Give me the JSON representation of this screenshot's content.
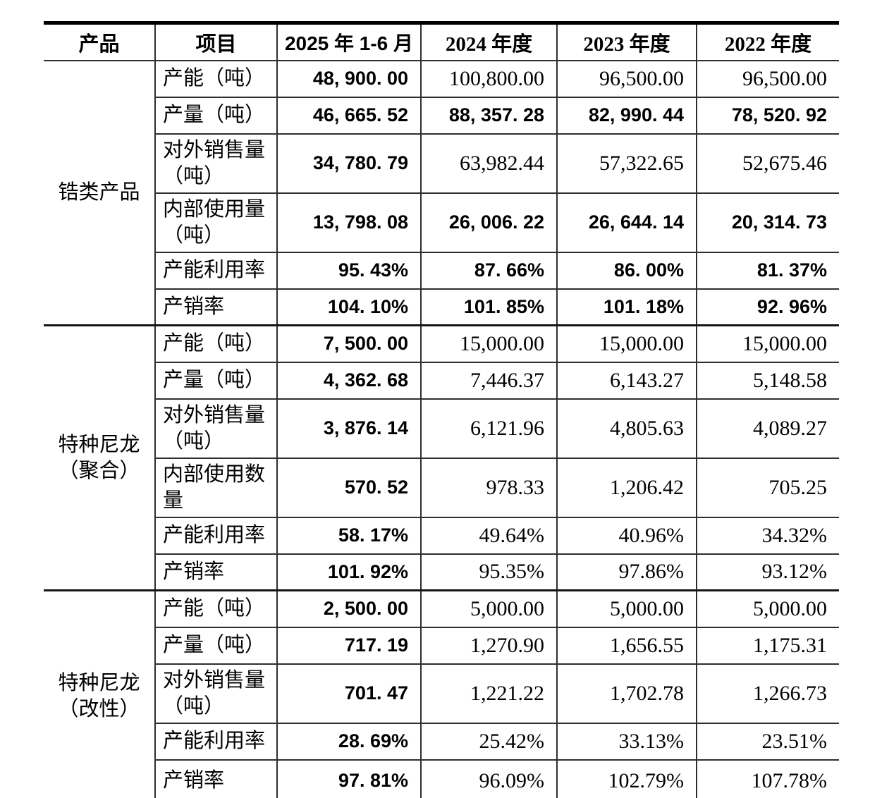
{
  "table": {
    "columns": [
      "产品",
      "项目",
      "2025 年 1-6 月",
      "2024 年度",
      "2023 年度",
      "2022 年度"
    ],
    "groups": [
      {
        "product": "锆类产品",
        "rows": [
          {
            "item": "产能（吨）",
            "values": [
              "48, 900. 00",
              "100,800.00",
              "96,500.00",
              "96,500.00"
            ],
            "bold": [
              true,
              false,
              false,
              false
            ]
          },
          {
            "item": "产量（吨）",
            "values": [
              "46, 665. 52",
              "88, 357. 28",
              "82, 990. 44",
              "78, 520. 92"
            ],
            "bold": [
              true,
              true,
              true,
              true
            ]
          },
          {
            "item": "对外销售量（吨）",
            "values": [
              "34, 780. 79",
              "63,982.44",
              "57,322.65",
              "52,675.46"
            ],
            "bold": [
              true,
              false,
              false,
              false
            ]
          },
          {
            "item": "内部使用量（吨）",
            "values": [
              "13, 798. 08",
              "26, 006. 22",
              "26, 644. 14",
              "20, 314. 73"
            ],
            "bold": [
              true,
              true,
              true,
              true
            ]
          },
          {
            "item": "产能利用率",
            "values": [
              "95. 43%",
              "87. 66%",
              "86. 00%",
              "81. 37%"
            ],
            "bold": [
              true,
              true,
              true,
              true
            ]
          },
          {
            "item": "产销率",
            "values": [
              "104. 10%",
              "101. 85%",
              "101. 18%",
              "92. 96%"
            ],
            "bold": [
              true,
              true,
              true,
              true
            ]
          }
        ]
      },
      {
        "product": "特种尼龙（聚合）",
        "rows": [
          {
            "item": "产能（吨）",
            "values": [
              "7, 500. 00",
              "15,000.00",
              "15,000.00",
              "15,000.00"
            ],
            "bold": [
              true,
              false,
              false,
              false
            ]
          },
          {
            "item": "产量（吨）",
            "values": [
              "4, 362. 68",
              "7,446.37",
              "6,143.27",
              "5,148.58"
            ],
            "bold": [
              true,
              false,
              false,
              false
            ]
          },
          {
            "item": "对外销售量（吨）",
            "values": [
              "3, 876. 14",
              "6,121.96",
              "4,805.63",
              "4,089.27"
            ],
            "bold": [
              true,
              false,
              false,
              false
            ]
          },
          {
            "item": "内部使用数量",
            "values": [
              "570. 52",
              "978.33",
              "1,206.42",
              "705.25"
            ],
            "bold": [
              true,
              false,
              false,
              false
            ]
          },
          {
            "item": "产能利用率",
            "values": [
              "58. 17%",
              "49.64%",
              "40.96%",
              "34.32%"
            ],
            "bold": [
              true,
              false,
              false,
              false
            ]
          },
          {
            "item": "产销率",
            "values": [
              "101. 92%",
              "95.35%",
              "97.86%",
              "93.12%"
            ],
            "bold": [
              true,
              false,
              false,
              false
            ]
          }
        ]
      },
      {
        "product": "特种尼龙（改性）",
        "rows": [
          {
            "item": "产能（吨）",
            "values": [
              "2, 500. 00",
              "5,000.00",
              "5,000.00",
              "5,000.00"
            ],
            "bold": [
              true,
              false,
              false,
              false
            ]
          },
          {
            "item": "产量（吨）",
            "values": [
              "717. 19",
              "1,270.90",
              "1,656.55",
              "1,175.31"
            ],
            "bold": [
              true,
              false,
              false,
              false
            ]
          },
          {
            "item": "对外销售量（吨）",
            "values": [
              "701. 47",
              "1,221.22",
              "1,702.78",
              "1,266.73"
            ],
            "bold": [
              true,
              false,
              false,
              false
            ]
          },
          {
            "item": "产能利用率",
            "values": [
              "28. 69%",
              "25.42%",
              "33.13%",
              "23.51%"
            ],
            "bold": [
              true,
              false,
              false,
              false
            ]
          },
          {
            "item": "产销率",
            "values": [
              "97. 81%",
              "96.09%",
              "102.79%",
              "107.78%"
            ],
            "bold": [
              true,
              false,
              false,
              false
            ]
          }
        ]
      }
    ]
  }
}
